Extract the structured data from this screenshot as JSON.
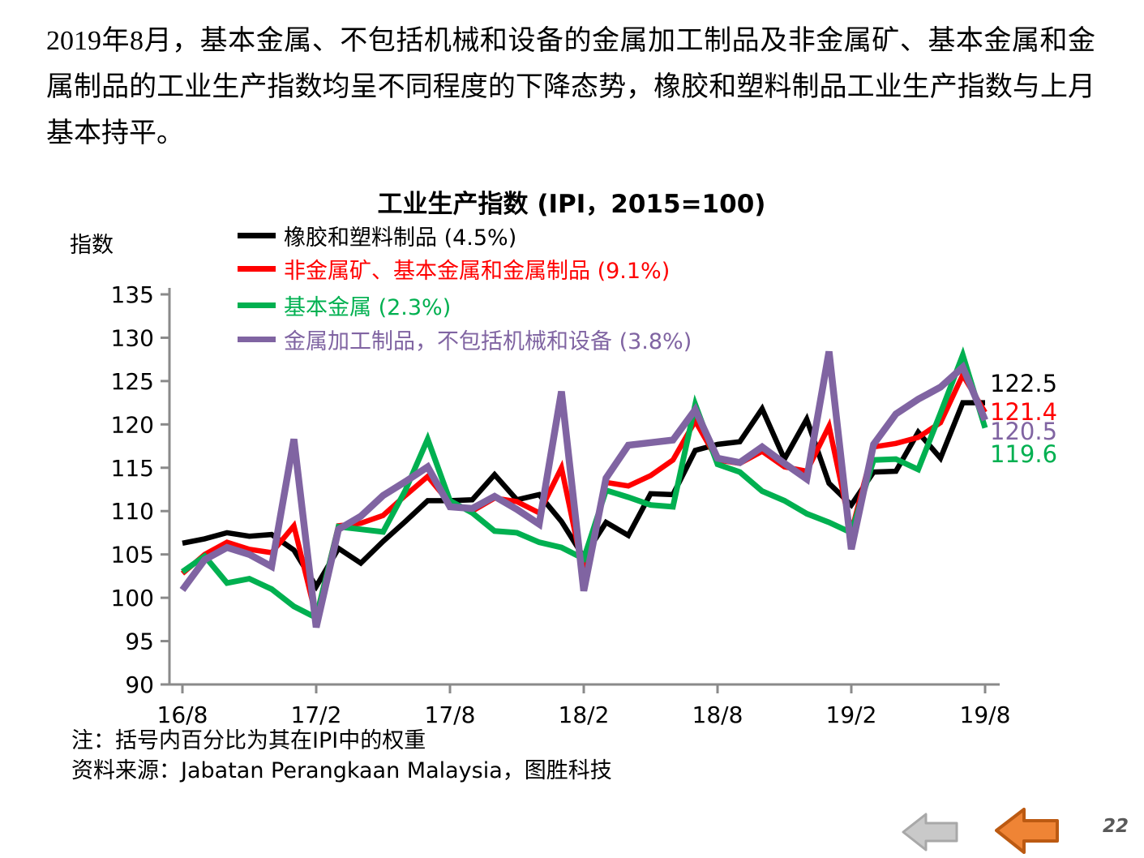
{
  "intro_text": "2019年8月，基本金属、不包括机械和设备的金属加工制品及非金属矿、基本金属和金属制品的工业生产指数均呈不同程度的下降态势，橡胶和塑料制品工业生产指数与上月基本持平。",
  "notes": {
    "note1": "注：括号内百分比为其在IPI中的权重",
    "note2": "资料来源：Jabatan Perangkaan Malaysia，图胜科技"
  },
  "nav": {
    "page_number": "22",
    "arrows": [
      {
        "icon": "left-arrow",
        "style": "gray"
      },
      {
        "icon": "left-arrow",
        "style": "orange"
      }
    ]
  },
  "chart_data": {
    "type": "line",
    "title": "工业生产指数 (IPI，2015=100)",
    "y_axis_label": "指数",
    "ylim": [
      90,
      135
    ],
    "y_ticks": [
      135,
      130,
      125,
      120,
      115,
      110,
      105,
      100,
      95,
      90
    ],
    "x_tick_labels": [
      "16/8",
      "17/2",
      "17/8",
      "18/2",
      "18/8",
      "19/2",
      "19/8"
    ],
    "grid": false,
    "legend_position": "top-left-inside",
    "categories": [
      "16/8",
      "16/9",
      "16/10",
      "16/11",
      "16/12",
      "17/1",
      "17/2",
      "17/3",
      "17/4",
      "17/5",
      "17/6",
      "17/7",
      "17/8",
      "17/9",
      "17/10",
      "17/11",
      "17/12",
      "18/1",
      "18/2",
      "18/3",
      "18/4",
      "18/5",
      "18/6",
      "18/7",
      "18/8",
      "18/9",
      "18/10",
      "18/11",
      "18/12",
      "19/1",
      "19/2",
      "19/3",
      "19/4",
      "19/5",
      "19/6",
      "19/7",
      "19/8"
    ],
    "series": [
      {
        "name": "橡胶和塑料制品 (4.5%)",
        "color": "#000000",
        "end_label": "122.5",
        "values": [
          106.3,
          106.8,
          107.5,
          107.1,
          107.3,
          105.5,
          101.3,
          105.7,
          104.0,
          106.5,
          108.8,
          111.2,
          111.2,
          111.3,
          114.2,
          111.3,
          111.9,
          108.8,
          104.7,
          108.7,
          107.2,
          112.0,
          111.9,
          117.0,
          117.7,
          118.0,
          121.8,
          116.0,
          120.6,
          113.2,
          110.7,
          114.5,
          114.6,
          119.1,
          116.1,
          122.5,
          122.5
        ]
      },
      {
        "name": "非金属矿、基本金属和金属制品 (9.1%)",
        "color": "#FF0000",
        "end_label": "121.4",
        "values": [
          102.8,
          105.0,
          106.4,
          105.6,
          105.2,
          108.3,
          97.8,
          108.3,
          108.6,
          109.5,
          111.8,
          114.0,
          110.9,
          110.0,
          111.5,
          111.1,
          109.8,
          115.0,
          102.7,
          113.3,
          112.9,
          114.1,
          115.9,
          120.4,
          115.9,
          115.5,
          116.9,
          115.1,
          114.6,
          119.8,
          107.6,
          117.4,
          117.8,
          118.5,
          120.2,
          125.7,
          121.4
        ]
      },
      {
        "name": "基本金属 (2.3%)",
        "color": "#00B050",
        "end_label": "119.6",
        "values": [
          103.0,
          104.8,
          101.7,
          102.2,
          101.0,
          99.0,
          97.7,
          108.2,
          107.9,
          107.6,
          112.4,
          118.3,
          111.2,
          109.8,
          107.7,
          107.5,
          106.4,
          105.8,
          104.5,
          112.4,
          111.6,
          110.7,
          110.5,
          122.3,
          115.4,
          114.5,
          112.3,
          111.2,
          109.7,
          108.7,
          107.5,
          115.9,
          116.0,
          114.8,
          121.3,
          128.0,
          119.6
        ]
      },
      {
        "name": "金属加工制品，不包括机械和设备 (3.8%)",
        "color": "#8064A2",
        "end_label": "120.5",
        "values": [
          100.9,
          104.4,
          105.8,
          105.0,
          103.6,
          118.3,
          96.6,
          107.9,
          109.4,
          111.8,
          113.4,
          115.1,
          110.5,
          110.3,
          111.7,
          110.2,
          108.5,
          123.8,
          100.8,
          113.8,
          117.6,
          117.9,
          118.2,
          121.7,
          116.1,
          115.6,
          117.4,
          115.5,
          113.7,
          128.4,
          105.6,
          117.7,
          121.2,
          122.9,
          124.3,
          126.6,
          120.5
        ]
      }
    ]
  }
}
